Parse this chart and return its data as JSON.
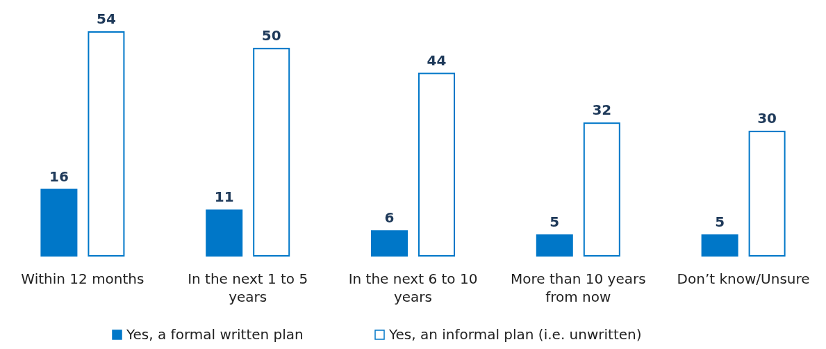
{
  "chart_data": {
    "type": "bar",
    "categories": [
      "Within 12 months",
      "In the next 1 to 5 years",
      "In the next 6 to 10 years",
      "More than 10 years from now",
      "Don’t know/Unsure"
    ],
    "series": [
      {
        "name": "Yes, a formal written plan",
        "color": "#0077c8",
        "values": [
          16,
          11,
          6,
          5,
          5
        ]
      },
      {
        "name": "Yes, an informal plan (i.e. unwritten)",
        "color": "#ffffff",
        "values": [
          54,
          50,
          44,
          32,
          30
        ]
      }
    ],
    "ylim": [
      0,
      54
    ],
    "tick_labels": "x",
    "data_labels": true,
    "legend": "bottom"
  }
}
